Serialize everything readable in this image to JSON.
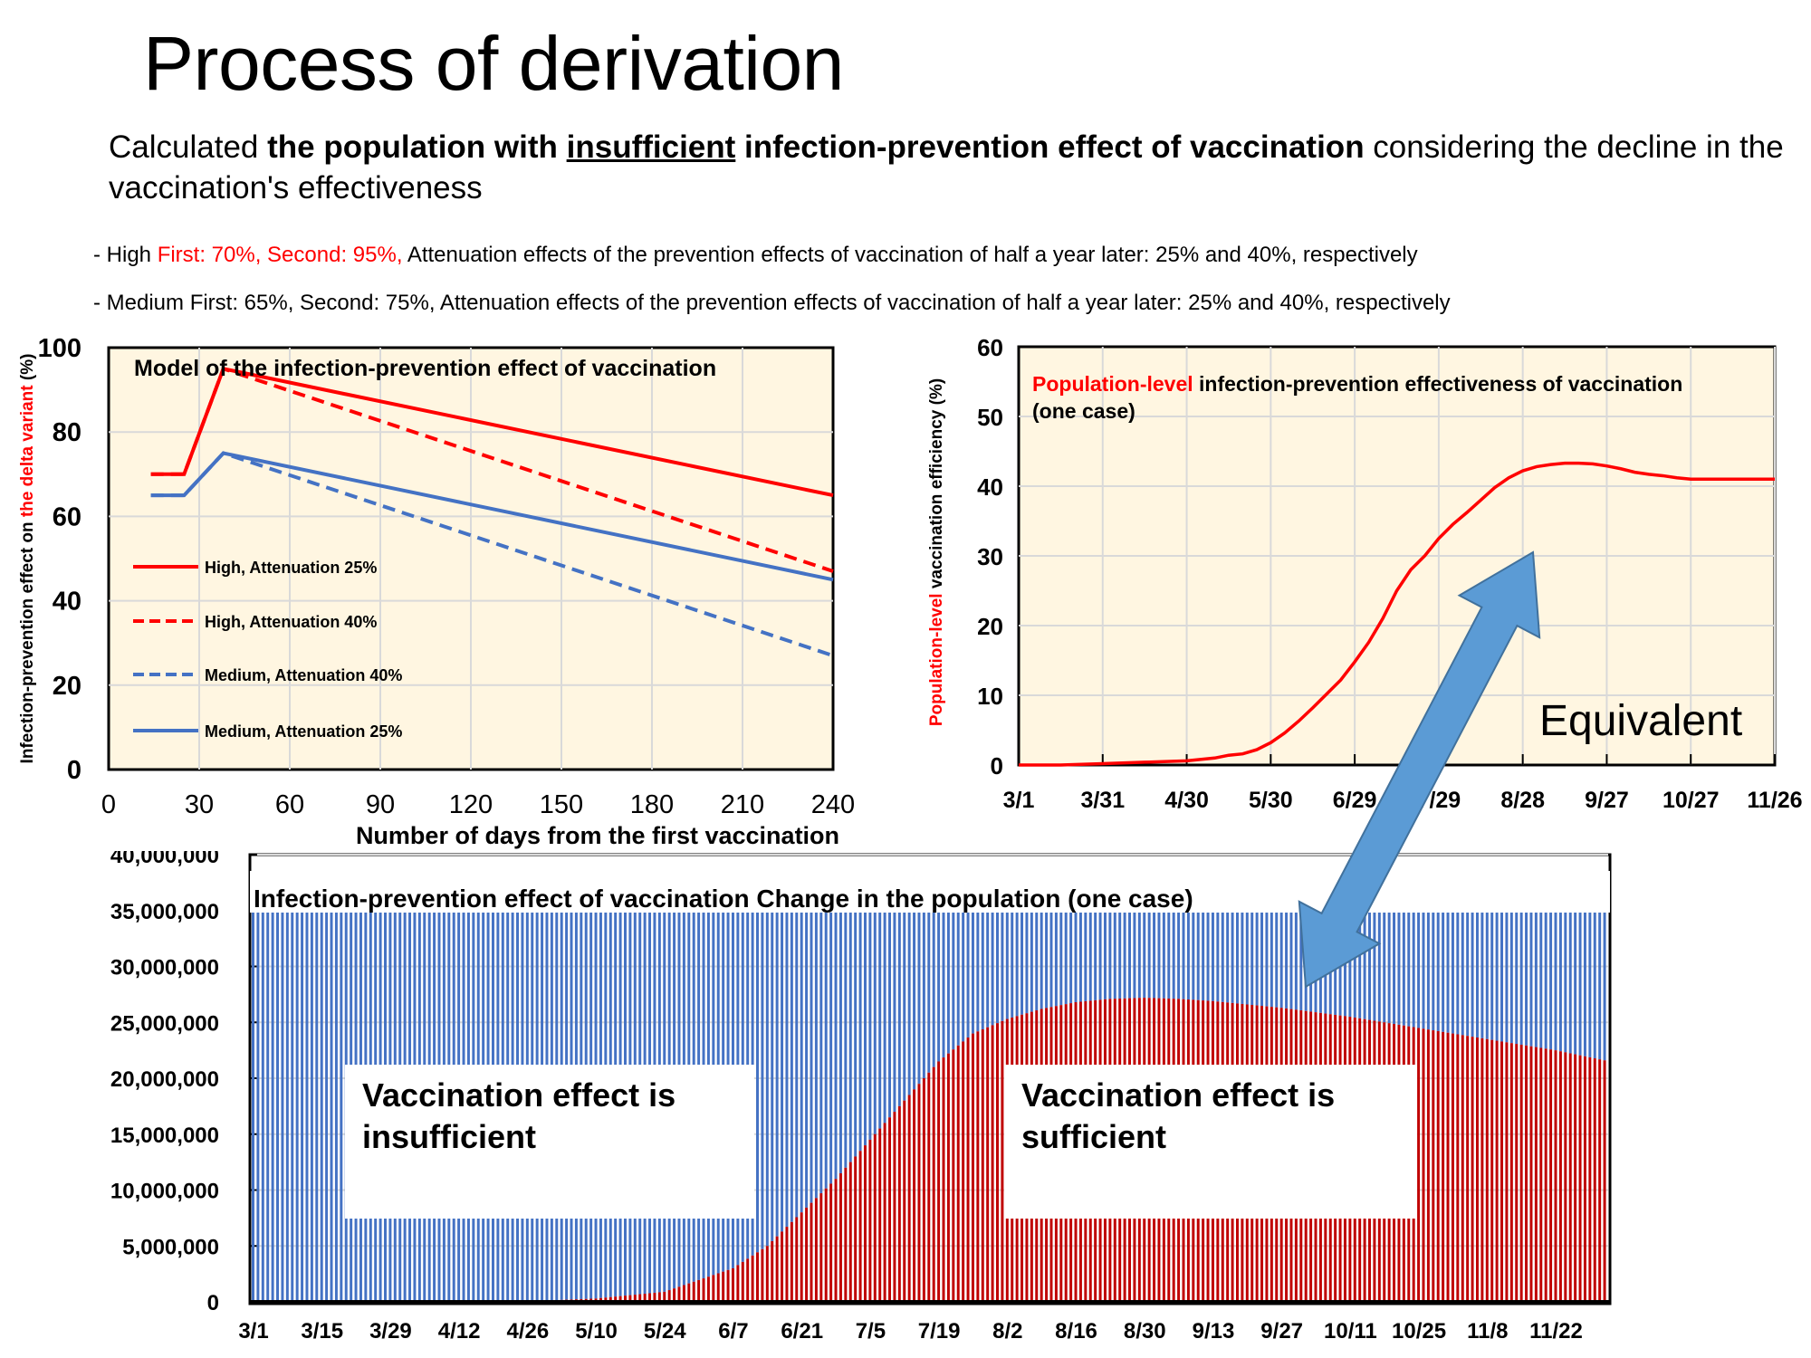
{
  "page": {
    "title": "Process of derivation",
    "subtitle": {
      "prefix": "Calculated ",
      "bold_1": "the population with ",
      "bold_underlined": "insufficient",
      "bold_2": " infection-prevention effect of vaccination",
      "suffix": " considering the decline in the vaccination's effectiveness"
    },
    "bullets": [
      {
        "prefix": "- High ",
        "highlight": "First: 70%, Second: 95%,",
        "rest": " Attenuation effects of the prevention effects of vaccination of half a year later: 25% and 40%, respectively"
      },
      {
        "prefix": "- Medium ",
        "highlight": "",
        "rest": "First: 65%, Second: 75%, Attenuation effects of the prevention effects of vaccination of half a year later: 25% and 40%, respectively"
      }
    ],
    "annotation": "Equivalent",
    "colors": {
      "red": "#ff0000",
      "blue": "#4472c4",
      "dark_red": "#c00000",
      "panel_bg": "#fff6e1",
      "arrow": "#5b9bd5",
      "grid": "#d9d9d9"
    }
  },
  "chart_data": [
    {
      "id": "model",
      "type": "line",
      "title": "Model of the infection-prevention effect of vaccination",
      "xlabel": "Number of days from the first vaccination",
      "ylabel_parts": [
        "Infection-prevention effect on ",
        "the delta variant",
        " (%)"
      ],
      "xlim": [
        0,
        240
      ],
      "ylim": [
        0,
        100
      ],
      "xticks": [
        0,
        30,
        60,
        90,
        120,
        150,
        180,
        210,
        240
      ],
      "yticks": [
        0,
        20,
        40,
        60,
        80,
        100
      ],
      "grid": true,
      "legend_position": "left-middle",
      "series": [
        {
          "name": "High, Attenuation 25%",
          "color": "#ff0000",
          "dash": false,
          "points": [
            [
              14,
              70
            ],
            [
              25,
              70
            ],
            [
              38,
              95
            ],
            [
              240,
              65
            ]
          ]
        },
        {
          "name": "High, Attenuation 40%",
          "color": "#ff0000",
          "dash": true,
          "points": [
            [
              14,
              70
            ],
            [
              25,
              70
            ],
            [
              38,
              95
            ],
            [
              240,
              47
            ]
          ]
        },
        {
          "name": "Medium, Attenuation 40%",
          "color": "#4472c4",
          "dash": true,
          "points": [
            [
              14,
              65
            ],
            [
              25,
              65
            ],
            [
              38,
              75
            ],
            [
              240,
              27
            ]
          ]
        },
        {
          "name": "Medium, Attenuation 25%",
          "color": "#4472c4",
          "dash": false,
          "points": [
            [
              14,
              65
            ],
            [
              25,
              65
            ],
            [
              38,
              75
            ],
            [
              240,
              45
            ]
          ]
        }
      ]
    },
    {
      "id": "population_level",
      "type": "line",
      "title_parts": [
        "Population-level",
        " infection-prevention effectiveness of vaccination",
        "(one case)"
      ],
      "ylabel_parts": [
        "Population-level",
        " vaccination efficiency (%)"
      ],
      "xlabel": "",
      "xtick_labels": [
        "3/1",
        "3/31",
        "4/30",
        "5/30",
        "6/29",
        "7/29",
        "8/28",
        "9/27",
        "10/27",
        "11/26"
      ],
      "x_day_range": [
        0,
        270
      ],
      "ylim": [
        0,
        60
      ],
      "yticks": [
        0,
        10,
        20,
        30,
        40,
        50,
        60
      ],
      "grid": true,
      "series": [
        {
          "name": "Population-level vaccination efficiency",
          "color": "#ff0000",
          "x_days": [
            0,
            15,
            30,
            45,
            60,
            70,
            75,
            80,
            85,
            90,
            95,
            100,
            105,
            110,
            115,
            120,
            125,
            130,
            135,
            140,
            145,
            150,
            155,
            160,
            165,
            170,
            175,
            180,
            185,
            190,
            195,
            200,
            205,
            210,
            215,
            220,
            225,
            230,
            235,
            240,
            245,
            250,
            255,
            260,
            265,
            270
          ],
          "values": [
            0,
            0,
            0.2,
            0.4,
            0.6,
            1.0,
            1.4,
            1.6,
            2.2,
            3.2,
            4.6,
            6.3,
            8.2,
            10.2,
            12.2,
            14.8,
            17.6,
            21.0,
            25.0,
            28.0,
            30.0,
            32.5,
            34.5,
            36.2,
            38.0,
            39.8,
            41.2,
            42.2,
            42.8,
            43.1,
            43.3,
            43.3,
            43.2,
            42.9,
            42.5,
            42.0,
            41.7,
            41.5,
            41.2,
            41.0,
            41.0,
            41.0,
            41.0,
            41.0,
            41.0,
            41.0
          ]
        }
      ]
    },
    {
      "id": "population_change",
      "type": "bar",
      "stacked": true,
      "title": "Infection-prevention effect of vaccination  Change in the population (one case)",
      "xtick_labels": [
        "3/1",
        "3/15",
        "3/29",
        "4/12",
        "4/26",
        "5/10",
        "5/24",
        "6/7",
        "6/21",
        "7/5",
        "7/19",
        "8/2",
        "8/16",
        "8/30",
        "9/13",
        "9/27",
        "10/11",
        "10/25",
        "11/8",
        "11/22"
      ],
      "x_day_range": [
        0,
        276
      ],
      "ylim": [
        0,
        40000000
      ],
      "yticks": [
        0,
        5000000,
        10000000,
        15000000,
        20000000,
        25000000,
        30000000,
        35000000,
        40000000
      ],
      "ytick_labels": [
        "0",
        "5,000,000",
        "10,000,000",
        "15,000,000",
        "20,000,000",
        "25,000,000",
        "30,000,000",
        "35,000,000",
        "40,000,000"
      ],
      "total_population": 35800000,
      "grid": true,
      "series": [
        {
          "name": "Vaccination effect is sufficient",
          "color": "#c00000",
          "x_days": [
            0,
            14,
            28,
            42,
            56,
            70,
            84,
            98,
            105,
            112,
            119,
            126,
            133,
            140,
            147,
            154,
            161,
            168,
            175,
            182,
            189,
            196,
            203,
            210,
            217,
            224,
            231,
            238,
            245,
            252,
            259,
            266,
            276
          ],
          "values": [
            0,
            0,
            0,
            0,
            50000,
            300000,
            900000,
            3000000,
            5000000,
            8000000,
            11000000,
            14500000,
            18000000,
            21500000,
            24000000,
            25300000,
            26200000,
            26800000,
            27100000,
            27200000,
            27100000,
            26900000,
            26600000,
            26300000,
            25900000,
            25500000,
            25000000,
            24500000,
            24000000,
            23500000,
            23000000,
            22500000,
            21600000
          ]
        },
        {
          "name": "Vaccination effect is insufficient",
          "color": "#4472c4",
          "note": "remainder up to total population"
        }
      ],
      "labels": [
        "Vaccination effect is insufficient",
        "Vaccination effect is sufficient"
      ]
    }
  ]
}
